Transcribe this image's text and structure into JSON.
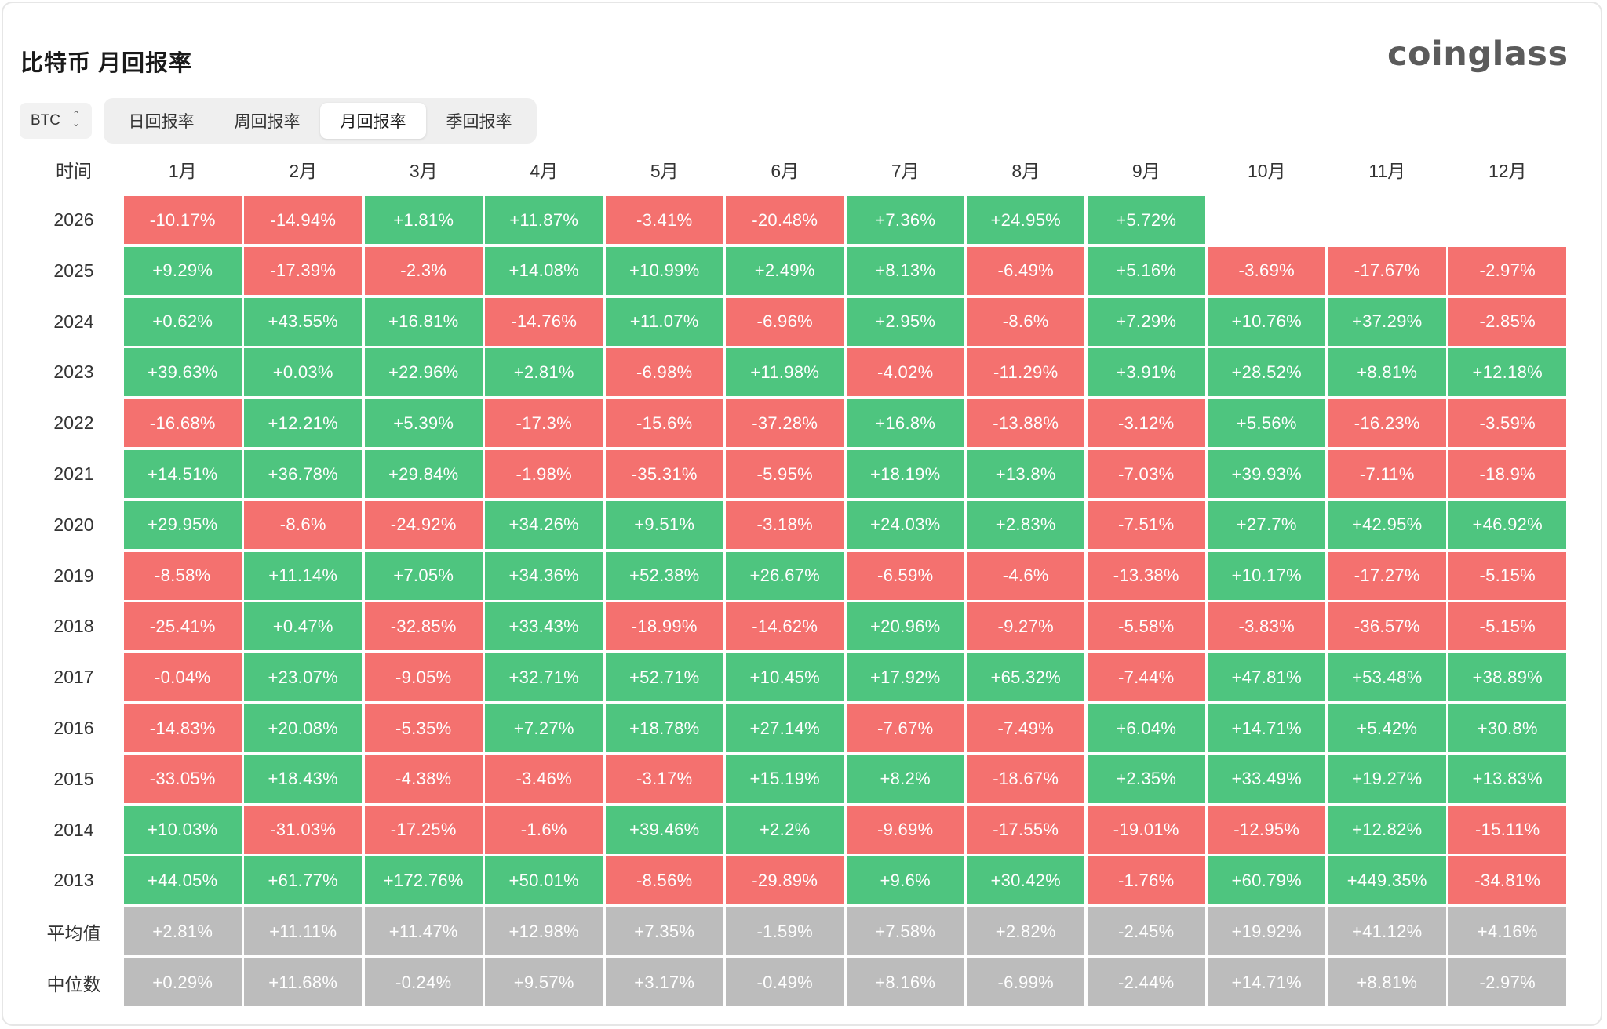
{
  "page": {
    "title": "比特币 月回报率",
    "logo": "coinglass"
  },
  "coin_select": {
    "value": "BTC"
  },
  "tabs": [
    {
      "label": "日回报率",
      "active": false
    },
    {
      "label": "周回报率",
      "active": false
    },
    {
      "label": "月回报率",
      "active": true
    },
    {
      "label": "季回报率",
      "active": false
    }
  ],
  "colors": {
    "positive": "#4ec57f",
    "negative": "#f4716f",
    "summary": "#bcbcbc"
  },
  "table": {
    "corner": "时间",
    "months": [
      "1月",
      "2月",
      "3月",
      "4月",
      "5月",
      "6月",
      "7月",
      "8月",
      "9月",
      "10月",
      "11月",
      "12月"
    ],
    "rows": [
      {
        "year": "2026",
        "values": [
          "-10.17%",
          "-14.94%",
          "+1.81%",
          "+11.87%",
          "-3.41%",
          "-20.48%",
          "+7.36%",
          "+24.95%",
          "+5.72%",
          "",
          "",
          ""
        ]
      },
      {
        "year": "2025",
        "values": [
          "+9.29%",
          "-17.39%",
          "-2.3%",
          "+14.08%",
          "+10.99%",
          "+2.49%",
          "+8.13%",
          "-6.49%",
          "+5.16%",
          "-3.69%",
          "-17.67%",
          "-2.97%"
        ]
      },
      {
        "year": "2024",
        "values": [
          "+0.62%",
          "+43.55%",
          "+16.81%",
          "-14.76%",
          "+11.07%",
          "-6.96%",
          "+2.95%",
          "-8.6%",
          "+7.29%",
          "+10.76%",
          "+37.29%",
          "-2.85%"
        ]
      },
      {
        "year": "2023",
        "values": [
          "+39.63%",
          "+0.03%",
          "+22.96%",
          "+2.81%",
          "-6.98%",
          "+11.98%",
          "-4.02%",
          "-11.29%",
          "+3.91%",
          "+28.52%",
          "+8.81%",
          "+12.18%"
        ]
      },
      {
        "year": "2022",
        "values": [
          "-16.68%",
          "+12.21%",
          "+5.39%",
          "-17.3%",
          "-15.6%",
          "-37.28%",
          "+16.8%",
          "-13.88%",
          "-3.12%",
          "+5.56%",
          "-16.23%",
          "-3.59%"
        ]
      },
      {
        "year": "2021",
        "values": [
          "+14.51%",
          "+36.78%",
          "+29.84%",
          "-1.98%",
          "-35.31%",
          "-5.95%",
          "+18.19%",
          "+13.8%",
          "-7.03%",
          "+39.93%",
          "-7.11%",
          "-18.9%"
        ]
      },
      {
        "year": "2020",
        "values": [
          "+29.95%",
          "-8.6%",
          "-24.92%",
          "+34.26%",
          "+9.51%",
          "-3.18%",
          "+24.03%",
          "+2.83%",
          "-7.51%",
          "+27.7%",
          "+42.95%",
          "+46.92%"
        ]
      },
      {
        "year": "2019",
        "values": [
          "-8.58%",
          "+11.14%",
          "+7.05%",
          "+34.36%",
          "+52.38%",
          "+26.67%",
          "-6.59%",
          "-4.6%",
          "-13.38%",
          "+10.17%",
          "-17.27%",
          "-5.15%"
        ]
      },
      {
        "year": "2018",
        "values": [
          "-25.41%",
          "+0.47%",
          "-32.85%",
          "+33.43%",
          "-18.99%",
          "-14.62%",
          "+20.96%",
          "-9.27%",
          "-5.58%",
          "-3.83%",
          "-36.57%",
          "-5.15%"
        ]
      },
      {
        "year": "2017",
        "values": [
          "-0.04%",
          "+23.07%",
          "-9.05%",
          "+32.71%",
          "+52.71%",
          "+10.45%",
          "+17.92%",
          "+65.32%",
          "-7.44%",
          "+47.81%",
          "+53.48%",
          "+38.89%"
        ]
      },
      {
        "year": "2016",
        "values": [
          "-14.83%",
          "+20.08%",
          "-5.35%",
          "+7.27%",
          "+18.78%",
          "+27.14%",
          "-7.67%",
          "-7.49%",
          "+6.04%",
          "+14.71%",
          "+5.42%",
          "+30.8%"
        ]
      },
      {
        "year": "2015",
        "values": [
          "-33.05%",
          "+18.43%",
          "-4.38%",
          "-3.46%",
          "-3.17%",
          "+15.19%",
          "+8.2%",
          "-18.67%",
          "+2.35%",
          "+33.49%",
          "+19.27%",
          "+13.83%"
        ]
      },
      {
        "year": "2014",
        "values": [
          "+10.03%",
          "-31.03%",
          "-17.25%",
          "-1.6%",
          "+39.46%",
          "+2.2%",
          "-9.69%",
          "-17.55%",
          "-19.01%",
          "-12.95%",
          "+12.82%",
          "-15.11%"
        ]
      },
      {
        "year": "2013",
        "values": [
          "+44.05%",
          "+61.77%",
          "+172.76%",
          "+50.01%",
          "-8.56%",
          "-29.89%",
          "+9.6%",
          "+30.42%",
          "-1.76%",
          "+60.79%",
          "+449.35%",
          "-34.81%"
        ]
      }
    ],
    "summary_rows": [
      {
        "label": "平均值",
        "values": [
          "+2.81%",
          "+11.11%",
          "+11.47%",
          "+12.98%",
          "+7.35%",
          "-1.59%",
          "+7.58%",
          "+2.82%",
          "-2.45%",
          "+19.92%",
          "+41.12%",
          "+4.16%"
        ]
      },
      {
        "label": "中位数",
        "values": [
          "+0.29%",
          "+11.68%",
          "-0.24%",
          "+9.57%",
          "+3.17%",
          "-0.49%",
          "+8.16%",
          "-6.99%",
          "-2.44%",
          "+14.71%",
          "+8.81%",
          "-2.97%"
        ]
      }
    ]
  }
}
